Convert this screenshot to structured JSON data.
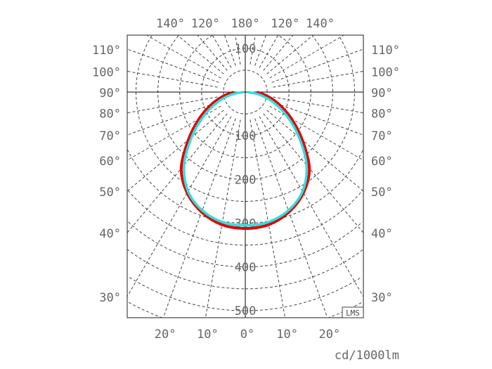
{
  "chart_data": {
    "type": "polar",
    "unit_label": "cd/1000lm",
    "watermark": "LMS",
    "radial_ticks": [
      100,
      200,
      300,
      400,
      500
    ],
    "radial_range": [
      0,
      500
    ],
    "angle_step_deg": 10,
    "grid": true,
    "left_angle_labels": [
      "110°",
      "100°",
      "90°",
      "80°",
      "70°",
      "60°",
      "50°",
      "40°",
      "30°"
    ],
    "left_angle_values": [
      110,
      100,
      90,
      80,
      70,
      60,
      50,
      40,
      30
    ],
    "bottom_angle_labels": [
      "20°",
      "10°",
      "0°",
      "10°",
      "20°"
    ],
    "bottom_angle_values": [
      -20,
      -10,
      0,
      10,
      20
    ],
    "top_angle_labels": [
      "120°",
      "140°",
      "180°",
      "140°",
      "120°"
    ],
    "top_angle_values": [
      -120,
      -140,
      180,
      140,
      120
    ],
    "angles": [
      0,
      10,
      20,
      30,
      40,
      50,
      60,
      70,
      80,
      90
    ],
    "series": [
      {
        "color": "#e00000",
        "values": [
          312,
          308,
          292,
          266,
          228,
          170,
          122,
          82,
          50,
          26
        ]
      },
      {
        "color": "#33dddd",
        "values": [
          305,
          302,
          288,
          262,
          218,
          160,
          110,
          68,
          32,
          4
        ]
      }
    ]
  }
}
